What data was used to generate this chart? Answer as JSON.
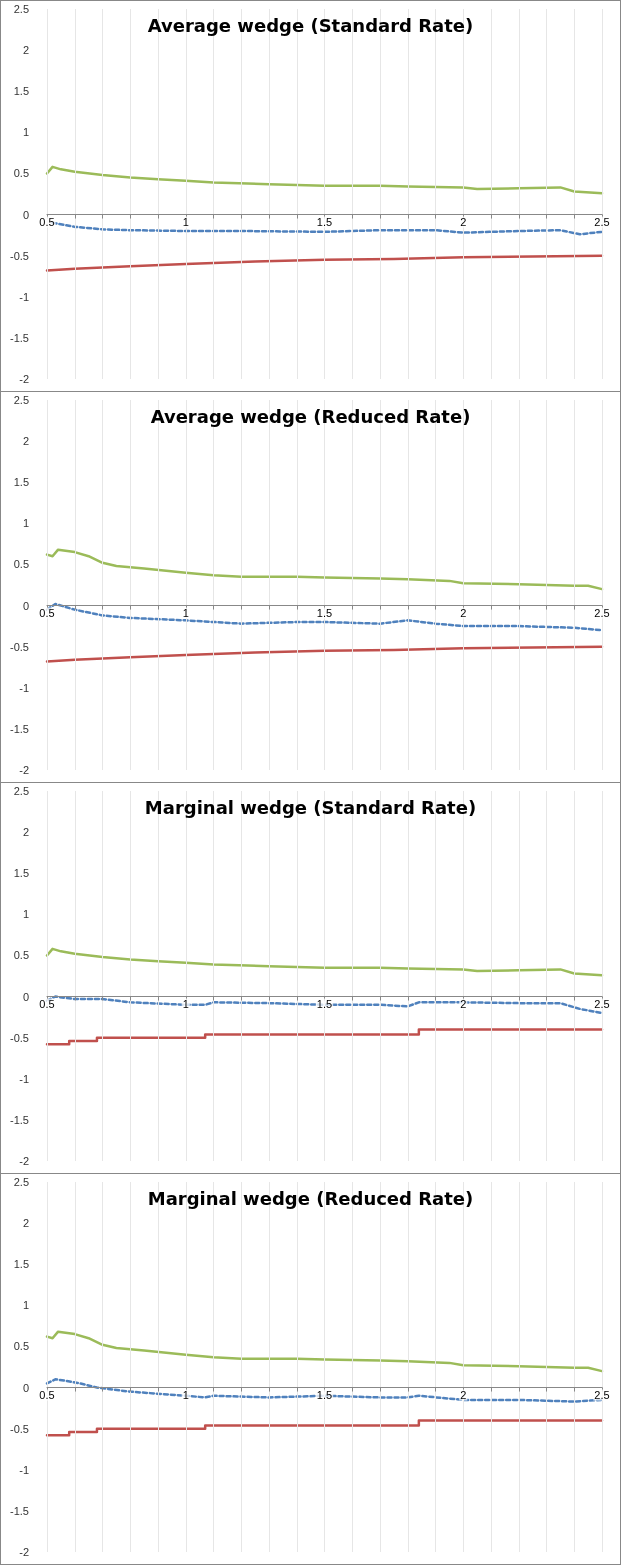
{
  "chart_data": [
    {
      "type": "line",
      "title": "Average wedge (Standard Rate)",
      "xlim": [
        0.5,
        2.5
      ],
      "ylim": [
        -2,
        2.5
      ],
      "xticks": [
        0.5,
        {
          "value": 0.6,
          "label": null
        },
        {
          "value": 0.7,
          "label": null
        },
        {
          "value": 0.8,
          "label": null
        },
        {
          "value": 0.9,
          "label": null
        },
        1,
        {
          "value": 1.1,
          "label": null
        },
        {
          "value": 1.2,
          "label": null
        },
        {
          "value": 1.3,
          "label": null
        },
        {
          "value": 1.4,
          "label": null
        },
        1.5,
        {
          "value": 1.6,
          "label": null
        },
        {
          "value": 1.7,
          "label": null
        },
        {
          "value": 1.8,
          "label": null
        },
        {
          "value": 1.9,
          "label": null
        },
        2,
        {
          "value": 2.1,
          "label": null
        },
        {
          "value": 2.2,
          "label": null
        },
        {
          "value": 2.3,
          "label": null
        },
        {
          "value": 2.4,
          "label": null
        },
        2.5
      ],
      "yticks": [
        -2,
        -1.5,
        -1,
        -0.5,
        0,
        0.5,
        1,
        1.5,
        2,
        2.5
      ],
      "grid": "x",
      "marker": "none",
      "series": [
        {
          "color": "#9bbb59",
          "line_style": "solid",
          "x": [
            0.5,
            0.52,
            0.55,
            0.6,
            0.7,
            0.8,
            0.9,
            1.0,
            1.1,
            1.3,
            1.5,
            1.7,
            1.8,
            2.0,
            2.05,
            2.2,
            2.35,
            2.4,
            2.5
          ],
          "values": [
            0.5,
            0.58,
            0.55,
            0.52,
            0.48,
            0.45,
            0.43,
            0.41,
            0.39,
            0.37,
            0.35,
            0.35,
            0.34,
            0.33,
            0.31,
            0.32,
            0.33,
            0.28,
            0.26
          ]
        },
        {
          "color": "#4f81bd",
          "line_style": "dashed",
          "x": [
            0.52,
            0.6,
            0.7,
            0.8,
            1.0,
            1.2,
            1.5,
            1.7,
            1.9,
            2.0,
            2.2,
            2.35,
            2.42,
            2.5
          ],
          "values": [
            -0.1,
            -0.15,
            -0.18,
            -0.19,
            -0.2,
            -0.2,
            -0.21,
            -0.19,
            -0.19,
            -0.22,
            -0.2,
            -0.19,
            -0.24,
            -0.21
          ]
        },
        {
          "color": "#c0504d",
          "line_style": "solid",
          "x": [
            0.5,
            0.6,
            0.8,
            1.0,
            1.25,
            1.5,
            1.75,
            2.0,
            2.25,
            2.5
          ],
          "values": [
            -0.68,
            -0.66,
            -0.63,
            -0.6,
            -0.57,
            -0.55,
            -0.54,
            -0.52,
            -0.51,
            -0.5
          ]
        }
      ]
    },
    {
      "type": "line",
      "title": "Average wedge (Reduced Rate)",
      "xlim": [
        0.5,
        2.5
      ],
      "ylim": [
        -2,
        2.5
      ],
      "xticks": [
        0.5,
        {
          "value": 0.6,
          "label": null
        },
        {
          "value": 0.7,
          "label": null
        },
        {
          "value": 0.8,
          "label": null
        },
        {
          "value": 0.9,
          "label": null
        },
        1,
        {
          "value": 1.1,
          "label": null
        },
        {
          "value": 1.2,
          "label": null
        },
        {
          "value": 1.3,
          "label": null
        },
        {
          "value": 1.4,
          "label": null
        },
        1.5,
        {
          "value": 1.6,
          "label": null
        },
        {
          "value": 1.7,
          "label": null
        },
        {
          "value": 1.8,
          "label": null
        },
        {
          "value": 1.9,
          "label": null
        },
        2,
        {
          "value": 2.1,
          "label": null
        },
        {
          "value": 2.2,
          "label": null
        },
        {
          "value": 2.3,
          "label": null
        },
        {
          "value": 2.4,
          "label": null
        },
        2.5
      ],
      "yticks": [
        -2,
        -1.5,
        -1,
        -0.5,
        0,
        0.5,
        1,
        1.5,
        2,
        2.5
      ],
      "grid": "x",
      "marker": "none",
      "series": [
        {
          "color": "#9bbb59",
          "line_style": "solid",
          "x": [
            0.5,
            0.52,
            0.54,
            0.6,
            0.65,
            0.7,
            0.75,
            0.85,
            1.0,
            1.1,
            1.2,
            1.4,
            1.5,
            1.7,
            1.8,
            1.95,
            2.0,
            2.2,
            2.4,
            2.45,
            2.5
          ],
          "values": [
            0.62,
            0.6,
            0.68,
            0.65,
            0.6,
            0.52,
            0.48,
            0.45,
            0.4,
            0.37,
            0.35,
            0.35,
            0.34,
            0.33,
            0.32,
            0.3,
            0.27,
            0.26,
            0.24,
            0.24,
            0.2
          ]
        },
        {
          "color": "#4f81bd",
          "line_style": "dashed",
          "x": [
            0.5,
            0.53,
            0.6,
            0.7,
            0.8,
            1.0,
            1.2,
            1.4,
            1.5,
            1.7,
            1.8,
            1.9,
            2.0,
            2.2,
            2.4,
            2.5
          ],
          "values": [
            -0.05,
            0.02,
            -0.05,
            -0.12,
            -0.15,
            -0.18,
            -0.22,
            -0.2,
            -0.2,
            -0.22,
            -0.18,
            -0.22,
            -0.25,
            -0.25,
            -0.27,
            -0.3
          ]
        },
        {
          "color": "#c0504d",
          "line_style": "solid",
          "x": [
            0.5,
            0.6,
            0.8,
            1.0,
            1.25,
            1.5,
            1.75,
            2.0,
            2.25,
            2.5
          ],
          "values": [
            -0.68,
            -0.66,
            -0.63,
            -0.6,
            -0.57,
            -0.55,
            -0.54,
            -0.52,
            -0.51,
            -0.5
          ]
        }
      ]
    },
    {
      "type": "line",
      "title": "Marginal wedge (Standard Rate)",
      "xlim": [
        0.5,
        2.5
      ],
      "ylim": [
        -2,
        2.5
      ],
      "xticks": [
        0.5,
        {
          "value": 0.6,
          "label": null
        },
        {
          "value": 0.7,
          "label": null
        },
        {
          "value": 0.8,
          "label": null
        },
        {
          "value": 0.9,
          "label": null
        },
        1,
        {
          "value": 1.1,
          "label": null
        },
        {
          "value": 1.2,
          "label": null
        },
        {
          "value": 1.3,
          "label": null
        },
        {
          "value": 1.4,
          "label": null
        },
        1.5,
        {
          "value": 1.6,
          "label": null
        },
        {
          "value": 1.7,
          "label": null
        },
        {
          "value": 1.8,
          "label": null
        },
        {
          "value": 1.9,
          "label": null
        },
        2,
        {
          "value": 2.1,
          "label": null
        },
        {
          "value": 2.2,
          "label": null
        },
        {
          "value": 2.3,
          "label": null
        },
        {
          "value": 2.4,
          "label": null
        },
        2.5
      ],
      "yticks": [
        -2,
        -1.5,
        -1,
        -0.5,
        0,
        0.5,
        1,
        1.5,
        2,
        2.5
      ],
      "grid": "x",
      "marker": "none",
      "series": [
        {
          "color": "#9bbb59",
          "line_style": "solid",
          "x": [
            0.5,
            0.52,
            0.55,
            0.6,
            0.7,
            0.8,
            0.9,
            1.0,
            1.1,
            1.3,
            1.5,
            1.7,
            1.8,
            2.0,
            2.05,
            2.2,
            2.35,
            2.4,
            2.5
          ],
          "values": [
            0.5,
            0.58,
            0.55,
            0.52,
            0.48,
            0.45,
            0.43,
            0.41,
            0.39,
            0.37,
            0.35,
            0.35,
            0.34,
            0.33,
            0.31,
            0.32,
            0.33,
            0.28,
            0.26
          ]
        },
        {
          "color": "#4f81bd",
          "line_style": "dashed",
          "x": [
            0.5,
            0.53,
            0.6,
            0.7,
            0.8,
            1.0,
            1.07,
            1.1,
            1.3,
            1.5,
            1.7,
            1.8,
            1.84,
            2.0,
            2.2,
            2.35,
            2.42,
            2.5
          ],
          "values": [
            -0.05,
            0,
            -0.03,
            -0.03,
            -0.07,
            -0.1,
            -0.1,
            -0.07,
            -0.08,
            -0.1,
            -0.1,
            -0.12,
            -0.07,
            -0.07,
            -0.08,
            -0.08,
            -0.15,
            -0.2
          ]
        },
        {
          "type": "step",
          "color": "#c0504d",
          "line_style": "solid",
          "x": [
            0.5,
            0.58,
            0.68,
            1.07,
            1.84,
            2.5
          ],
          "values": [
            -0.58,
            -0.54,
            -0.5,
            -0.46,
            -0.4,
            -0.4
          ]
        }
      ]
    },
    {
      "type": "line",
      "title": "Marginal wedge (Reduced Rate)",
      "xlim": [
        0.5,
        2.5
      ],
      "ylim": [
        -2,
        2.5
      ],
      "xticks": [
        0.5,
        {
          "value": 0.6,
          "label": null
        },
        {
          "value": 0.7,
          "label": null
        },
        {
          "value": 0.8,
          "label": null
        },
        {
          "value": 0.9,
          "label": null
        },
        1,
        {
          "value": 1.1,
          "label": null
        },
        {
          "value": 1.2,
          "label": null
        },
        {
          "value": 1.3,
          "label": null
        },
        {
          "value": 1.4,
          "label": null
        },
        1.5,
        {
          "value": 1.6,
          "label": null
        },
        {
          "value": 1.7,
          "label": null
        },
        {
          "value": 1.8,
          "label": null
        },
        {
          "value": 1.9,
          "label": null
        },
        2,
        {
          "value": 2.1,
          "label": null
        },
        {
          "value": 2.2,
          "label": null
        },
        {
          "value": 2.3,
          "label": null
        },
        {
          "value": 2.4,
          "label": null
        },
        2.5
      ],
      "yticks": [
        -2,
        -1.5,
        -1,
        -0.5,
        0,
        0.5,
        1,
        1.5,
        2,
        2.5
      ],
      "grid": "x",
      "marker": "none",
      "series": [
        {
          "color": "#9bbb59",
          "line_style": "solid",
          "x": [
            0.5,
            0.52,
            0.54,
            0.6,
            0.65,
            0.7,
            0.75,
            0.85,
            1.0,
            1.1,
            1.2,
            1.4,
            1.5,
            1.7,
            1.8,
            1.95,
            2.0,
            2.2,
            2.4,
            2.45,
            2.5
          ],
          "values": [
            0.62,
            0.6,
            0.68,
            0.65,
            0.6,
            0.52,
            0.48,
            0.45,
            0.4,
            0.37,
            0.35,
            0.35,
            0.34,
            0.33,
            0.32,
            0.3,
            0.27,
            0.26,
            0.24,
            0.24,
            0.2
          ]
        },
        {
          "color": "#4f81bd",
          "line_style": "dashed",
          "x": [
            0.5,
            0.53,
            0.57,
            0.62,
            0.68,
            0.8,
            1.0,
            1.07,
            1.1,
            1.3,
            1.5,
            1.7,
            1.8,
            1.84,
            2.0,
            2.2,
            2.4,
            2.5
          ],
          "values": [
            0.05,
            0.1,
            0.08,
            0.05,
            0,
            -0.05,
            -0.1,
            -0.12,
            -0.1,
            -0.12,
            -0.1,
            -0.12,
            -0.12,
            -0.1,
            -0.15,
            -0.15,
            -0.17,
            -0.15
          ]
        },
        {
          "type": "step",
          "color": "#c0504d",
          "line_style": "solid",
          "x": [
            0.5,
            0.58,
            0.68,
            1.07,
            1.84,
            2.5
          ],
          "values": [
            -0.58,
            -0.54,
            -0.5,
            -0.46,
            -0.4,
            -0.4
          ]
        }
      ]
    }
  ]
}
